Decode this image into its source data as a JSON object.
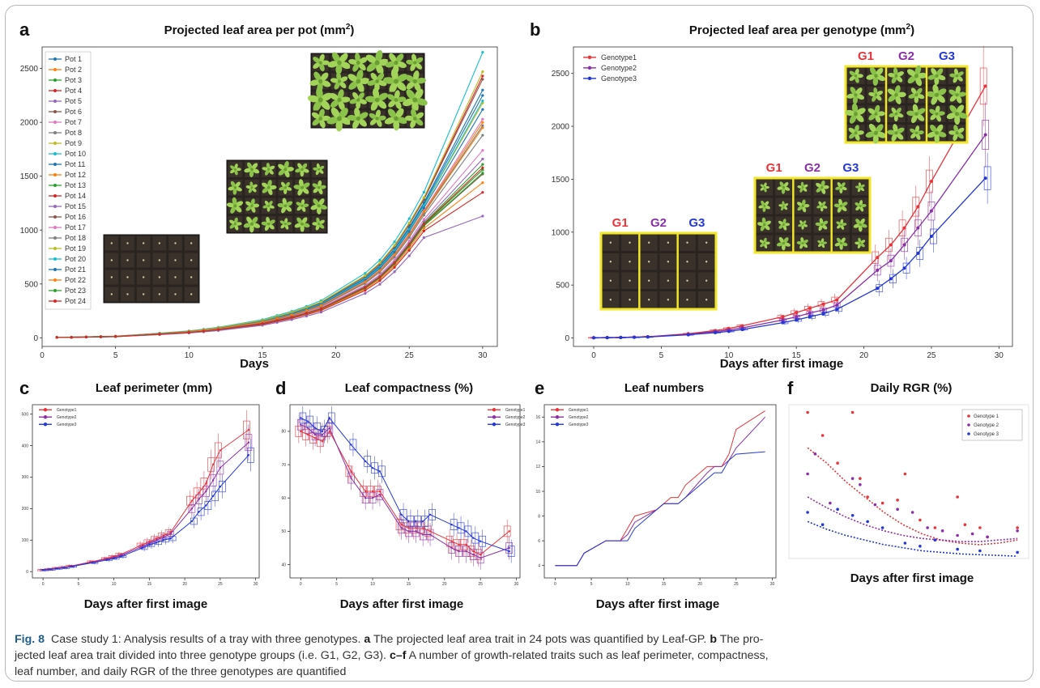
{
  "figure": {
    "caption_fig": "Fig. 8",
    "caption_intro": "Case study 1: Analysis results of a tray with three genotypes.",
    "caption_a_letter": "a",
    "caption_a_text": "The projected leaf area trait in 24 pots was quantified by Leaf-GP.",
    "caption_b_letter": "b",
    "caption_b_text_line1": "The pro-",
    "caption_b_text_line2": "jected leaf area trait divided into three genotype groups (i.e. G1, G2, G3).",
    "caption_cf_letters": "c–f",
    "caption_cf_text_line2": "A number of growth-related traits such as leaf perimeter, compactness,",
    "caption_cf_text_line3": "leaf number, and daily RGR of the three genotypes are quantified"
  },
  "colors": {
    "genotype1": "#e8333a",
    "genotype2": "#8a2fa8",
    "genotype3": "#2337d6"
  },
  "panels": {
    "a": {
      "letter": "a",
      "title": "Projected leaf area per pot (mm",
      "title_sup": "2",
      "title_end": ")",
      "xlabel": "Days"
    },
    "b": {
      "letter": "b",
      "title": "Projected leaf area per genotype (mm",
      "title_sup": "2",
      "title_end": ")",
      "xlabel": "Days after first image",
      "tray_labels": [
        "G1",
        "G2",
        "G3"
      ]
    },
    "c": {
      "letter": "c",
      "title": "Leaf perimeter (mm)",
      "xlabel": "Days after first image"
    },
    "d": {
      "letter": "d",
      "title": "Leaf compactness (%)",
      "xlabel": "Days after first image"
    },
    "e": {
      "letter": "e",
      "title": "Leaf numbers",
      "xlabel": "Days after first image"
    },
    "f": {
      "letter": "f",
      "title": "Daily RGR (%)",
      "xlabel": "Days after first image"
    }
  },
  "chart_data": [
    {
      "panel": "a",
      "type": "line",
      "title": "Projected leaf area per pot (mm²)",
      "xlabel": "Days",
      "ylabel": "",
      "xlim": [
        0,
        31
      ],
      "ylim": [
        -80,
        2700
      ],
      "xticks": [
        0,
        5,
        10,
        15,
        20,
        25,
        30
      ],
      "yticks": [
        0,
        500,
        1000,
        1500,
        2000,
        2500
      ],
      "legend": "top-left",
      "x": [
        1,
        2,
        3,
        4,
        5,
        8,
        10,
        11,
        12,
        15,
        16,
        17,
        18,
        19,
        22,
        23,
        24,
        25,
        26,
        30
      ],
      "series": [
        {
          "name": "Pot 1",
          "color": "#1f77b4",
          "final": 2250
        },
        {
          "name": "Pot 2",
          "color": "#ff7f0e",
          "final": 1950
        },
        {
          "name": "Pot 3",
          "color": "#2ca02c",
          "final": 1560
        },
        {
          "name": "Pot 4",
          "color": "#d62728",
          "final": 2430
        },
        {
          "name": "Pot 5",
          "color": "#9467bd",
          "final": 1660
        },
        {
          "name": "Pot 6",
          "color": "#8c564b",
          "final": 1520
        },
        {
          "name": "Pot 7",
          "color": "#e377c2",
          "final": 1740
        },
        {
          "name": "Pot 8",
          "color": "#7f7f7f",
          "final": 1880
        },
        {
          "name": "Pot 9",
          "color": "#bcbd22",
          "final": 2180
        },
        {
          "name": "Pot 10",
          "color": "#17becf",
          "final": 2650
        },
        {
          "name": "Pot 11",
          "color": "#1f77b4",
          "final": 2300
        },
        {
          "name": "Pot 12",
          "color": "#ff7f0e",
          "final": 1440
        },
        {
          "name": "Pot 13",
          "color": "#2ca02c",
          "final": 1610
        },
        {
          "name": "Pot 14",
          "color": "#d62728",
          "final": 1350
        },
        {
          "name": "Pot 15",
          "color": "#9467bd",
          "final": 1130
        },
        {
          "name": "Pot 16",
          "color": "#8c564b",
          "final": 2400
        },
        {
          "name": "Pot 17",
          "color": "#e377c2",
          "final": 2030
        },
        {
          "name": "Pot 18",
          "color": "#7f7f7f",
          "final": 1970
        },
        {
          "name": "Pot 19",
          "color": "#bcbd22",
          "final": 2470
        },
        {
          "name": "Pot 20",
          "color": "#17becf",
          "final": 2200
        },
        {
          "name": "Pot 21",
          "color": "#1f77b4",
          "final": 2120
        },
        {
          "name": "Pot 22",
          "color": "#ff7f0e",
          "final": 2000
        },
        {
          "name": "Pot 23",
          "color": "#2ca02c",
          "final": 1530
        },
        {
          "name": "Pot 24",
          "color": "#d62728",
          "final": 1580
        }
      ]
    },
    {
      "panel": "b",
      "type": "line",
      "title": "Projected leaf area per genotype (mm²)",
      "xlabel": "Days after first image",
      "ylabel": "",
      "xlim": [
        -1.5,
        31
      ],
      "ylim": [
        -80,
        2750
      ],
      "xticks": [
        0,
        5,
        10,
        15,
        20,
        25,
        30
      ],
      "yticks": [
        0,
        500,
        1000,
        1500,
        2000,
        2500
      ],
      "legend": "top-left",
      "x": [
        0,
        1,
        2,
        3,
        4,
        7,
        9,
        10,
        11,
        14,
        15,
        16,
        17,
        18,
        21,
        22,
        23,
        24,
        25,
        29
      ],
      "series": [
        {
          "name": "Genotype1",
          "color": "#e8333a",
          "values": [
            2,
            3,
            5,
            8,
            12,
            40,
            70,
            90,
            115,
            200,
            240,
            280,
            320,
            360,
            760,
            880,
            1040,
            1240,
            1480,
            2380
          ]
        },
        {
          "name": "Genotype2",
          "color": "#8a2fa8",
          "values": [
            2,
            3,
            5,
            7,
            11,
            35,
            60,
            75,
            95,
            170,
            200,
            235,
            265,
            310,
            640,
            730,
            880,
            1040,
            1200,
            1920
          ]
        },
        {
          "name": "Genotype3",
          "color": "#2337d6",
          "values": [
            2,
            3,
            4,
            6,
            9,
            30,
            50,
            62,
            80,
            145,
            170,
            200,
            230,
            270,
            470,
            560,
            660,
            800,
            960,
            1510
          ]
        }
      ]
    },
    {
      "panel": "c",
      "type": "line",
      "title": "Leaf perimeter (mm)",
      "xlabel": "Days after first image",
      "xlim": [
        -1.5,
        30.5
      ],
      "ylim": [
        -20,
        530
      ],
      "yticks": [
        0,
        100,
        200,
        300,
        400,
        500
      ],
      "xticks": [
        0,
        5,
        10,
        15,
        20,
        25,
        30
      ],
      "legend": "top-left",
      "x": [
        0,
        1,
        2,
        3,
        4,
        7,
        9,
        10,
        11,
        14,
        15,
        16,
        17,
        18,
        21,
        22,
        23,
        24,
        25,
        29
      ],
      "series": [
        {
          "name": "Genotype1",
          "color": "#e8333a",
          "values": [
            5,
            8,
            11,
            14,
            18,
            32,
            42,
            48,
            55,
            85,
            95,
            105,
            115,
            125,
            225,
            250,
            280,
            340,
            385,
            450
          ]
        },
        {
          "name": "Genotype2",
          "color": "#8a2fa8",
          "values": [
            5,
            7,
            10,
            13,
            17,
            30,
            40,
            45,
            52,
            80,
            90,
            100,
            110,
            120,
            200,
            230,
            255,
            290,
            330,
            410
          ]
        },
        {
          "name": "Genotype3",
          "color": "#2337d6",
          "values": [
            5,
            7,
            10,
            12,
            16,
            28,
            37,
            42,
            48,
            75,
            85,
            92,
            100,
            105,
            160,
            190,
            210,
            240,
            270,
            370
          ]
        }
      ]
    },
    {
      "panel": "d",
      "type": "line",
      "title": "Leaf compactness (%)",
      "xlabel": "Days after first image",
      "xlim": [
        -1.5,
        30.5
      ],
      "ylim": [
        36,
        88
      ],
      "yticks": [
        40,
        50,
        60,
        70,
        80
      ],
      "xticks": [
        0,
        5,
        10,
        15,
        20,
        25,
        30
      ],
      "legend": "top-right",
      "x": [
        0,
        1,
        2,
        3,
        4,
        7,
        9,
        10,
        11,
        14,
        15,
        16,
        17,
        18,
        21,
        22,
        23,
        24,
        25,
        29
      ],
      "series": [
        {
          "name": "Genotype1",
          "color": "#e8333a",
          "values": [
            80,
            79,
            78,
            77,
            80,
            68,
            62,
            62,
            62,
            52,
            51,
            51,
            51,
            50,
            47,
            46,
            46,
            44,
            43,
            50
          ]
        },
        {
          "name": "Genotype2",
          "color": "#8a2fa8",
          "values": [
            82,
            81,
            79,
            79,
            81,
            66,
            60,
            60,
            61,
            51,
            50,
            50,
            49,
            49,
            45,
            44,
            44,
            43,
            42,
            45
          ]
        },
        {
          "name": "Genotype3",
          "color": "#2337d6",
          "values": [
            84,
            83,
            81,
            80,
            84,
            76,
            71,
            69,
            68,
            55,
            53,
            53,
            53,
            55,
            52,
            51,
            50,
            48,
            47,
            44
          ]
        }
      ]
    },
    {
      "panel": "e",
      "type": "line",
      "title": "Leaf numbers",
      "xlabel": "Days after first image",
      "xlim": [
        -1.5,
        30.5
      ],
      "ylim": [
        3,
        17
      ],
      "yticks": [
        4,
        6,
        8,
        10,
        12,
        14,
        16
      ],
      "xticks": [
        0,
        5,
        10,
        15,
        20,
        25,
        30
      ],
      "legend": "top-left",
      "x": [
        0,
        1,
        2,
        3,
        4,
        7,
        9,
        10,
        11,
        14,
        15,
        16,
        17,
        18,
        21,
        22,
        23,
        24,
        25,
        29
      ],
      "series": [
        {
          "name": "Genotype1",
          "color": "#e8333a",
          "values": [
            4,
            4,
            4,
            4,
            5,
            6,
            6,
            7,
            8,
            8.5,
            9,
            9.5,
            9.5,
            10.5,
            12,
            12,
            12,
            13,
            15,
            16.5
          ]
        },
        {
          "name": "Genotype2",
          "color": "#8a2fa8",
          "values": [
            4,
            4,
            4,
            4,
            5,
            6,
            6,
            6.5,
            7.5,
            8.5,
            9,
            9,
            9,
            9.5,
            11.5,
            12,
            12,
            12.5,
            13.5,
            16
          ]
        },
        {
          "name": "Genotype3",
          "color": "#2337d6",
          "values": [
            4,
            4,
            4,
            4,
            5,
            6,
            6,
            6,
            7,
            8.5,
            9,
            9,
            9,
            9.5,
            11,
            11.5,
            11.5,
            12.5,
            13,
            13.2
          ]
        }
      ]
    },
    {
      "panel": "f",
      "type": "scatter",
      "title": "Daily RGR (%)",
      "xlabel": "Days after first image",
      "xlim": [
        -1.5,
        30.5
      ],
      "ylim": [
        0,
        1
      ],
      "legend": "top-right",
      "series": [
        {
          "name": "Genotype 1",
          "color": "#e8333a",
          "points": [
            [
              1,
              0.95
            ],
            [
              3,
              0.8
            ],
            [
              5,
              0.62
            ],
            [
              7,
              0.95
            ],
            [
              8,
              0.52
            ],
            [
              9,
              0.4
            ],
            [
              11,
              0.36
            ],
            [
              13,
              0.38
            ],
            [
              14,
              0.55
            ],
            [
              16,
              0.25
            ],
            [
              18,
              0.2
            ],
            [
              21,
              0.4
            ],
            [
              22,
              0.22
            ],
            [
              24,
              0.2
            ],
            [
              25,
              0.14
            ],
            [
              29,
              0.2
            ]
          ],
          "fit": [
            0.72,
            0.62,
            0.5,
            0.4,
            0.3,
            0.22,
            0.16,
            0.12,
            0.1,
            0.09,
            0.1,
            0.12
          ]
        },
        {
          "name": "Genotype 2",
          "color": "#8a2fa8",
          "points": [
            [
              1,
              0.55
            ],
            [
              2,
              0.68
            ],
            [
              4,
              0.36
            ],
            [
              7,
              0.52
            ],
            [
              8,
              0.48
            ],
            [
              10,
              0.35
            ],
            [
              13,
              0.32
            ],
            [
              15,
              0.3
            ],
            [
              17,
              0.2
            ],
            [
              19,
              0.18
            ],
            [
              21,
              0.15
            ],
            [
              23,
              0.16
            ],
            [
              25,
              0.14
            ],
            [
              29,
              0.18
            ]
          ],
          "fit": [
            0.4,
            0.33,
            0.27,
            0.22,
            0.18,
            0.15,
            0.13,
            0.12,
            0.11,
            0.11,
            0.12,
            0.13
          ]
        },
        {
          "name": "Genotype 3",
          "color": "#2337d6",
          "points": [
            [
              1,
              0.3
            ],
            [
              3,
              0.22
            ],
            [
              5,
              0.32
            ],
            [
              7,
              0.28
            ],
            [
              9,
              0.24
            ],
            [
              11,
              0.2
            ],
            [
              14,
              0.1
            ],
            [
              16,
              0.08
            ],
            [
              18,
              0.12
            ],
            [
              21,
              0.06
            ],
            [
              24,
              0.05
            ],
            [
              29,
              0.04
            ]
          ],
          "fit": [
            0.24,
            0.19,
            0.15,
            0.12,
            0.09,
            0.07,
            0.05,
            0.04,
            0.03,
            0.025,
            0.02,
            0.015
          ]
        }
      ]
    }
  ]
}
